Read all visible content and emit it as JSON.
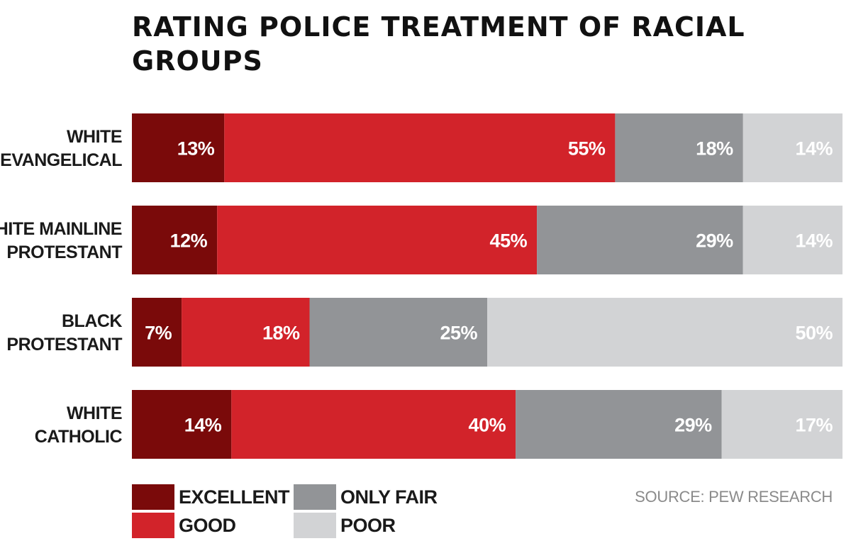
{
  "colors": {
    "excellent": "#7a0a0a",
    "good": "#d2232a",
    "only_fair": "#929497",
    "poor": "#d2d3d5"
  },
  "chart_data": {
    "type": "bar",
    "orientation": "horizontal-stacked-100",
    "title": "RATING POLICE TREATMENT OF RACIAL GROUPS",
    "categories": [
      [
        "WHITE",
        "EVANGELICAL"
      ],
      [
        "WHITE MAINLINE",
        "PROTESTANT"
      ],
      [
        "BLACK",
        "PROTESTANT"
      ],
      [
        "WHITE",
        "CATHOLIC"
      ]
    ],
    "series": [
      {
        "key": "excellent",
        "name": "EXCELLENT",
        "values": [
          13,
          12,
          7,
          14
        ]
      },
      {
        "key": "good",
        "name": "GOOD",
        "values": [
          55,
          45,
          18,
          40
        ]
      },
      {
        "key": "only_fair",
        "name": "ONLY FAIR",
        "values": [
          18,
          29,
          25,
          29
        ]
      },
      {
        "key": "poor",
        "name": "POOR",
        "values": [
          14,
          14,
          50,
          17
        ]
      }
    ],
    "value_suffix": "%",
    "xlim": [
      0,
      100
    ],
    "grid": false,
    "legend": "bottom-left"
  },
  "legend": {
    "excellent": "EXCELLENT",
    "good": "GOOD",
    "only_fair": "ONLY FAIR",
    "poor": "POOR"
  },
  "source": "SOURCE: PEW RESEARCH"
}
